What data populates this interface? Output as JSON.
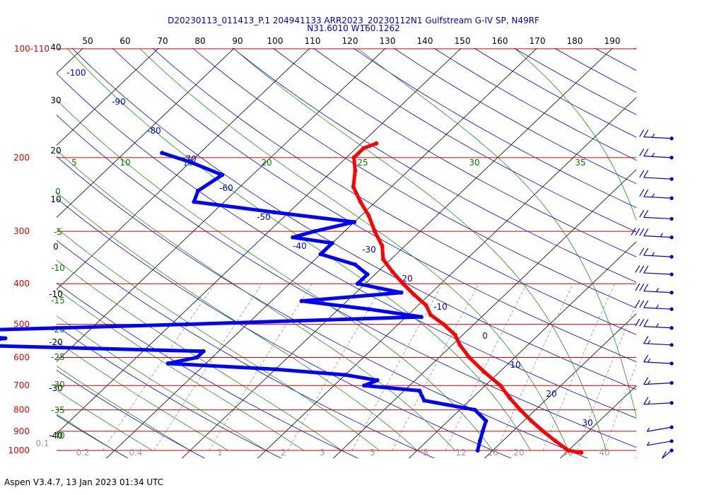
{
  "title": {
    "line1": "D20230113_011413_P.1 204941133 ARR2023_20230112N1 Gulfstream G-IV SP, N49RF",
    "line2": "N31.6010 W160.1262"
  },
  "footer": "Aspen V3.4.7, 13 Jan 2023  01:34 UTC",
  "colors": {
    "temperature": "#ff0000",
    "dewpoint": "#0000ff",
    "isobar": "#cc0000",
    "isotherm": "#000000",
    "dry_adiabat": "#0000cc",
    "moist_adiabat": "#008000",
    "mixing_ratio": "#888888",
    "wind": "#0000cc"
  },
  "chart_data": {
    "type": "skew-t",
    "pressure_top_label": "100-110",
    "pressure_levels": [
      {
        "label": "100-110",
        "p": 110
      },
      {
        "label": "200",
        "p": 200
      },
      {
        "label": "300",
        "p": 300
      },
      {
        "label": "400",
        "p": 400
      },
      {
        "label": "500",
        "p": 500
      },
      {
        "label": "600",
        "p": 600
      },
      {
        "label": "700",
        "p": 700
      },
      {
        "label": "800",
        "p": 800
      },
      {
        "label": "900",
        "p": 900
      },
      {
        "label": "1000",
        "p": 1000
      }
    ],
    "top_axis_ticks": [
      "50",
      "60",
      "70",
      "80",
      "90",
      "100",
      "110",
      "120",
      "130",
      "140",
      "150",
      "160",
      "170",
      "180",
      "190"
    ],
    "isotherm_labels": [
      "40",
      "30",
      "20",
      "10",
      "0",
      "-10",
      "-20",
      "-30",
      "-40"
    ],
    "dry_adiabat_labels": [
      "-100",
      "-90",
      "-80",
      "-70",
      "-60",
      "-50",
      "-40",
      "-30",
      "-20",
      "-10",
      "0",
      "10",
      "20",
      "30"
    ],
    "moist_adiabat_top_labels": [
      "5",
      "10",
      "15",
      "20",
      "25",
      "30",
      "35"
    ],
    "moist_adiabat_side_labels": [
      "0",
      "-5",
      "-10",
      "-15",
      "-20",
      "-25",
      "-30",
      "-35",
      "-40"
    ],
    "mixing_ratio_labels": [
      "0.1",
      "0.2",
      "0.4",
      "1",
      "2",
      "3",
      "5",
      "8",
      "12",
      "16",
      "20",
      "30",
      "40"
    ],
    "temperature": [
      {
        "p": 185,
        "t": -48
      },
      {
        "p": 190,
        "t": -49
      },
      {
        "p": 200,
        "t": -49
      },
      {
        "p": 215,
        "t": -47
      },
      {
        "p": 235,
        "t": -45
      },
      {
        "p": 255,
        "t": -42
      },
      {
        "p": 275,
        "t": -39
      },
      {
        "p": 300,
        "t": -36
      },
      {
        "p": 325,
        "t": -33
      },
      {
        "p": 350,
        "t": -31
      },
      {
        "p": 375,
        "t": -28
      },
      {
        "p": 400,
        "t": -25
      },
      {
        "p": 425,
        "t": -22
      },
      {
        "p": 450,
        "t": -19
      },
      {
        "p": 475,
        "t": -17
      },
      {
        "p": 500,
        "t": -14
      },
      {
        "p": 530,
        "t": -11
      },
      {
        "p": 560,
        "t": -9
      },
      {
        "p": 600,
        "t": -6
      },
      {
        "p": 650,
        "t": -2
      },
      {
        "p": 700,
        "t": 2
      },
      {
        "p": 750,
        "t": 5
      },
      {
        "p": 800,
        "t": 8
      },
      {
        "p": 850,
        "t": 11
      },
      {
        "p": 900,
        "t": 14
      },
      {
        "p": 950,
        "t": 17
      },
      {
        "p": 1000,
        "t": 20
      },
      {
        "p": 1012,
        "t": 22
      }
    ],
    "dewpoint": [
      {
        "p": 195,
        "t": -75
      },
      {
        "p": 205,
        "t": -70
      },
      {
        "p": 220,
        "t": -64
      },
      {
        "p": 240,
        "t": -65
      },
      {
        "p": 255,
        "t": -64
      },
      {
        "p": 270,
        "t": -52
      },
      {
        "p": 285,
        "t": -40
      },
      {
        "p": 300,
        "t": -44
      },
      {
        "p": 310,
        "t": -46
      },
      {
        "p": 320,
        "t": -40
      },
      {
        "p": 340,
        "t": -40
      },
      {
        "p": 360,
        "t": -34
      },
      {
        "p": 380,
        "t": -31
      },
      {
        "p": 400,
        "t": -31
      },
      {
        "p": 420,
        "t": -24
      },
      {
        "p": 440,
        "t": -36
      },
      {
        "p": 460,
        "t": -26
      },
      {
        "p": 480,
        "t": -18
      },
      {
        "p": 500,
        "t": -48
      },
      {
        "p": 520,
        "t": -80
      },
      {
        "p": 540,
        "t": -70
      },
      {
        "p": 560,
        "t": -75
      },
      {
        "p": 580,
        "t": -42
      },
      {
        "p": 600,
        "t": -42
      },
      {
        "p": 620,
        "t": -45
      },
      {
        "p": 640,
        "t": -30
      },
      {
        "p": 660,
        "t": -20
      },
      {
        "p": 680,
        "t": -15
      },
      {
        "p": 700,
        "t": -16
      },
      {
        "p": 720,
        "t": -8
      },
      {
        "p": 760,
        "t": -6
      },
      {
        "p": 800,
        "t": 2
      },
      {
        "p": 850,
        "t": 5
      },
      {
        "p": 900,
        "t": 6
      },
      {
        "p": 950,
        "t": 7
      },
      {
        "p": 1000,
        "t": 8
      }
    ],
    "wind_barbs": [
      {
        "p": 180,
        "speed": 25,
        "dir": 280
      },
      {
        "p": 200,
        "speed": 25,
        "dir": 280
      },
      {
        "p": 225,
        "speed": 20,
        "dir": 280
      },
      {
        "p": 250,
        "speed": 25,
        "dir": 280
      },
      {
        "p": 280,
        "speed": 20,
        "dir": 280
      },
      {
        "p": 310,
        "speed": 45,
        "dir": 280
      },
      {
        "p": 345,
        "speed": 25,
        "dir": 280
      },
      {
        "p": 380,
        "speed": 30,
        "dir": 280
      },
      {
        "p": 420,
        "speed": 35,
        "dir": 280
      },
      {
        "p": 460,
        "speed": 35,
        "dir": 280
      },
      {
        "p": 510,
        "speed": 35,
        "dir": 280
      },
      {
        "p": 560,
        "speed": 15,
        "dir": 280
      },
      {
        "p": 620,
        "speed": 15,
        "dir": 280
      },
      {
        "p": 690,
        "speed": 15,
        "dir": 260
      },
      {
        "p": 770,
        "speed": 15,
        "dir": 260
      },
      {
        "p": 880,
        "speed": 5,
        "dir": 240
      },
      {
        "p": 950,
        "speed": 5,
        "dir": 240
      },
      {
        "p": 1000,
        "speed": 10,
        "dir": 200
      }
    ]
  }
}
